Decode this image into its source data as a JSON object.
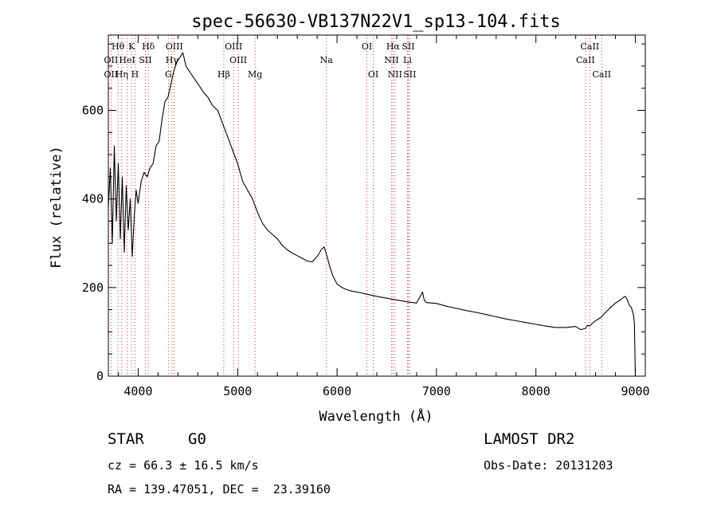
{
  "chart_data": {
    "type": "line",
    "title": "spec-56630-VB137N22V1_sp13-104.fits",
    "xlabel": "Wavelength (Å)",
    "ylabel": "Flux (relative)",
    "xlim": [
      3700,
      9100
    ],
    "ylim": [
      0,
      770
    ],
    "x_ticks": [
      4000,
      5000,
      6000,
      7000,
      8000,
      9000
    ],
    "y_ticks": [
      0,
      200,
      400,
      600
    ],
    "line_color": "#000000",
    "marker_line_color": "#cc3333",
    "series": [
      {
        "x": [
          3700,
          3720,
          3740,
          3760,
          3780,
          3800,
          3820,
          3840,
          3860,
          3880,
          3900,
          3920,
          3940,
          3960,
          3980,
          4000,
          4030,
          4060,
          4090,
          4120,
          4150,
          4180,
          4210,
          4240,
          4270,
          4300,
          4330,
          4360,
          4390,
          4420,
          4450,
          4480,
          4510,
          4540,
          4570,
          4600,
          4630,
          4660,
          4700,
          4750,
          4800,
          4850,
          4900,
          4950,
          5000,
          5050,
          5100,
          5150,
          5200,
          5250,
          5300,
          5350,
          5400,
          5450,
          5500,
          5550,
          5600,
          5650,
          5700,
          5750,
          5800,
          5840,
          5870,
          5890,
          5910,
          5930,
          5960,
          6000,
          6050,
          6100,
          6150,
          6200,
          6300,
          6400,
          6500,
          6600,
          6700,
          6800,
          6860,
          6870,
          6880,
          6900,
          7000,
          7100,
          7200,
          7300,
          7400,
          7500,
          7600,
          7700,
          7800,
          7900,
          8000,
          8100,
          8200,
          8300,
          8400,
          8450,
          8500,
          8520,
          8540,
          8560,
          8600,
          8650,
          8700,
          8750,
          8800,
          8850,
          8880,
          8900,
          8920,
          8940,
          8960,
          8980,
          8990,
          9000
        ],
        "y": [
          380,
          470,
          300,
          520,
          350,
          480,
          310,
          450,
          280,
          430,
          330,
          400,
          270,
          360,
          420,
          390,
          440,
          460,
          450,
          470,
          480,
          520,
          530,
          580,
          620,
          630,
          660,
          690,
          710,
          720,
          730,
          700,
          690,
          680,
          670,
          660,
          650,
          640,
          630,
          610,
          600,
          570,
          540,
          510,
          480,
          440,
          420,
          400,
          370,
          345,
          330,
          320,
          310,
          295,
          285,
          278,
          272,
          266,
          260,
          258,
          270,
          285,
          292,
          278,
          262,
          245,
          225,
          208,
          200,
          195,
          192,
          190,
          185,
          180,
          176,
          172,
          168,
          165,
          190,
          178,
          170,
          166,
          164,
          158,
          153,
          148,
          144,
          139,
          134,
          129,
          125,
          121,
          117,
          113,
          110,
          110,
          112,
          105,
          108,
          115,
          113,
          118,
          125,
          132,
          144,
          155,
          165,
          172,
          178,
          180,
          172,
          160,
          155,
          140,
          120,
          0
        ]
      }
    ],
    "line_markers": [
      {
        "label": "OII",
        "x": 3727,
        "row": 2
      },
      {
        "label": "OII",
        "x": 3727,
        "row": 3
      },
      {
        "label": "Hθ",
        "x": 3797,
        "row": 1
      },
      {
        "label": "Hη",
        "x": 3835,
        "row": 3
      },
      {
        "label": "HeI",
        "x": 3889,
        "row": 2
      },
      {
        "label": "K",
        "x": 3934,
        "row": 1
      },
      {
        "label": "SII",
        "x": 4072,
        "row": 2
      },
      {
        "label": "H",
        "x": 3968,
        "row": 3
      },
      {
        "label": "Hδ",
        "x": 4102,
        "row": 1
      },
      {
        "label": "OIII",
        "x": 4363,
        "row": 1
      },
      {
        "label": "Hγ",
        "x": 4340,
        "row": 2
      },
      {
        "label": "G",
        "x": 4304,
        "row": 3
      },
      {
        "label": "OIII",
        "x": 4959,
        "row": 1
      },
      {
        "label": "OIII",
        "x": 5007,
        "row": 2
      },
      {
        "label": "Hβ",
        "x": 4861,
        "row": 3
      },
      {
        "label": "Mg",
        "x": 5175,
        "row": 3
      },
      {
        "label": "Na",
        "x": 5893,
        "row": 2
      },
      {
        "label": "OI",
        "x": 6300,
        "row": 1
      },
      {
        "label": "OI",
        "x": 6364,
        "row": 3
      },
      {
        "label": "Hα",
        "x": 6563,
        "row": 1
      },
      {
        "label": "SII",
        "x": 6716,
        "row": 1
      },
      {
        "label": "NII",
        "x": 6548,
        "row": 2
      },
      {
        "label": "Li",
        "x": 6708,
        "row": 2
      },
      {
        "label": "NII",
        "x": 6583,
        "row": 3
      },
      {
        "label": "SII",
        "x": 6731,
        "row": 3
      },
      {
        "label": "CaII",
        "x": 8542,
        "row": 1
      },
      {
        "label": "CaII",
        "x": 8498,
        "row": 2
      },
      {
        "label": "CaII",
        "x": 8662,
        "row": 3
      }
    ]
  },
  "info": {
    "class": "STAR",
    "subclass": "G0",
    "survey": "LAMOST DR2",
    "cz": "cz = 66.3 ± 16.5 km/s",
    "obsdate": "Obs-Date: 20131203",
    "radec": "RA = 139.47051, DEC =  23.39160"
  }
}
